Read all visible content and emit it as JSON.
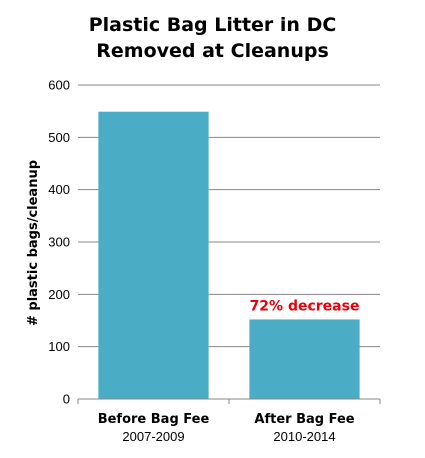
{
  "chart_data": {
    "type": "bar",
    "title_lines": [
      "Plastic Bag Litter in DC",
      "Removed at Cleanups"
    ],
    "ylabel": "# plastic bags/cleanup",
    "xlabel": "",
    "categories": [
      {
        "name": "Before Bag Fee",
        "period": "2007-2009"
      },
      {
        "name": "After Bag Fee",
        "period": "2010-2014"
      }
    ],
    "values": [
      549,
      152
    ],
    "ylim": [
      0,
      600
    ],
    "yticks": [
      0,
      100,
      200,
      300,
      400,
      500,
      600
    ],
    "grid": true,
    "bar_color": "#4bacc6",
    "annotation": {
      "text": "72% decrease",
      "category_index": 1,
      "color": "#e8000b"
    }
  }
}
